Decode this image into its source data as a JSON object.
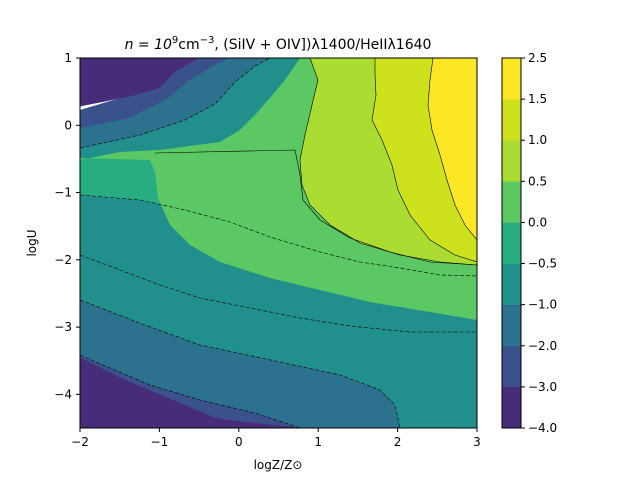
{
  "chart_data": {
    "type": "contourf",
    "title": {
      "prefix": "n = 10",
      "prefix_sup": "9",
      "unit": "cm",
      "unit_sup": "−3",
      "suffix": ", (SiIV + OIV])λ1400/HeIIλ1640"
    },
    "xlabel": "logZ/Z⊙",
    "ylabel": "logU",
    "xlim": [
      -2,
      3
    ],
    "ylim": [
      -4.5,
      1
    ],
    "x_ticks": [
      {
        "value": -2,
        "label": "−2"
      },
      {
        "value": -1,
        "label": "−1"
      },
      {
        "value": 0,
        "label": "0"
      },
      {
        "value": 1,
        "label": "1"
      },
      {
        "value": 2,
        "label": "2"
      },
      {
        "value": 3,
        "label": "3"
      }
    ],
    "y_ticks": [
      {
        "value": 1,
        "label": "1"
      },
      {
        "value": 0,
        "label": "0"
      },
      {
        "value": -1,
        "label": "−1"
      },
      {
        "value": -2,
        "label": "−2"
      },
      {
        "value": -3,
        "label": "−3"
      },
      {
        "value": -4,
        "label": "−4"
      }
    ],
    "colorbar": {
      "levels": [
        -4.0,
        -3.0,
        -2.0,
        -1.0,
        -0.5,
        0.0,
        0.5,
        1.0,
        1.5,
        2.5
      ],
      "tick_labels": [
        "−4.0",
        "−3.0",
        "−2.0",
        "−1.0",
        "−0.5",
        "0.0",
        "0.5",
        "1.0",
        "1.5",
        "2.5"
      ],
      "colors": [
        "#472c7a",
        "#3b518b",
        "#2c718e",
        "#21908d",
        "#27ad81",
        "#5cc863",
        "#aadc32",
        "#cde11d",
        "#fde725"
      ]
    },
    "contour_regions": [
      {
        "level_index": 0,
        "points": [
          [
            -2,
            0.28
          ],
          [
            -1.7,
            0.35
          ],
          [
            -1.3,
            0.45
          ],
          [
            -1.0,
            0.55
          ],
          [
            -0.8,
            0.8
          ],
          [
            -0.5,
            1.0
          ],
          [
            -2,
            1.0
          ]
        ]
      },
      {
        "level_index": 0,
        "points": [
          [
            -2,
            -3.45
          ],
          [
            -1.5,
            -3.75
          ],
          [
            -1.0,
            -4.0
          ],
          [
            -0.6,
            -4.2
          ],
          [
            -0.3,
            -4.35
          ],
          [
            0.0,
            -4.4
          ],
          [
            0.4,
            -4.45
          ],
          [
            0.8,
            -4.5
          ],
          [
            -2,
            -4.5
          ]
        ]
      }
    ]
  }
}
